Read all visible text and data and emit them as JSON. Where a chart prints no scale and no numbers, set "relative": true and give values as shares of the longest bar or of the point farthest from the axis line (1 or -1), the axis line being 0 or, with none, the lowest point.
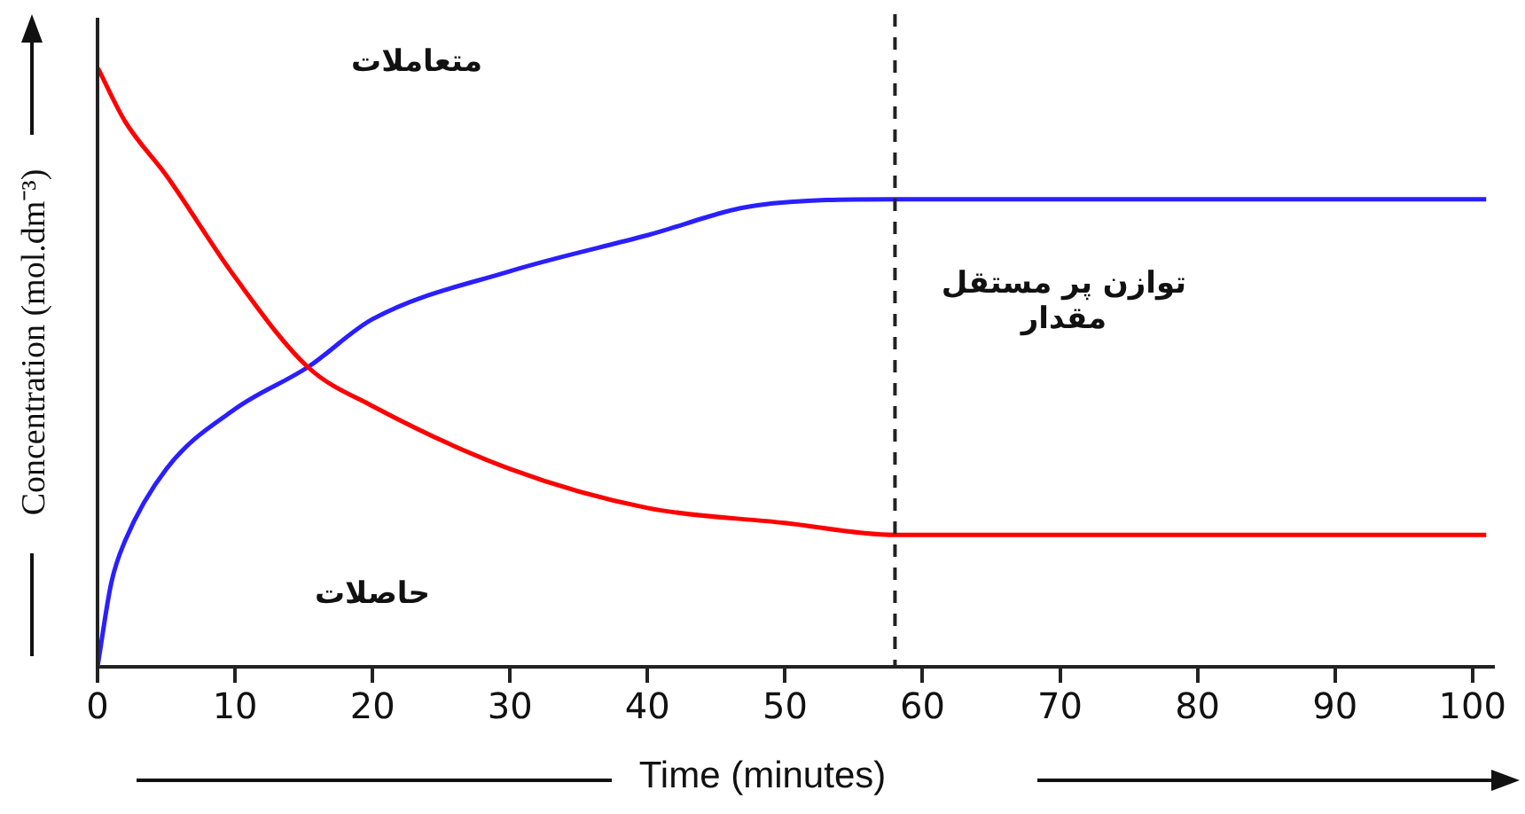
{
  "chart_data": {
    "type": "line",
    "relative": true,
    "xlabel": "Time (minutes)",
    "ylabel": "Concentration (mol.dm⁻³)",
    "xlim": [
      0,
      101.5
    ],
    "xticks": [
      0,
      10,
      20,
      30,
      40,
      50,
      60,
      70,
      80,
      90,
      100
    ],
    "marker": "none",
    "line_style": "solid",
    "legend": false,
    "series": [
      {
        "color": "#ff0000",
        "x": [
          0,
          2,
          5,
          10,
          15.3,
          20,
          30,
          40,
          50,
          58,
          101
        ],
        "values": [
          1,
          0.91,
          0.82,
          0.65,
          0.5,
          0.435,
          0.33,
          0.265,
          0.24,
          0.22,
          0.22
        ]
      },
      {
        "color": "#2a1fff",
        "x": [
          0,
          1,
          2,
          5,
          10,
          15.3,
          20,
          30,
          40,
          48,
          58,
          101
        ],
        "values": [
          0,
          0.14,
          0.21,
          0.33,
          0.43,
          0.5,
          0.58,
          0.66,
          0.72,
          0.77,
          0.78,
          0.78
        ]
      }
    ],
    "ref_lines": [
      {
        "axis": "x",
        "value": 58,
        "color": "#222222",
        "line_style": "dashed"
      }
    ],
    "annotations": [
      "متعاملات",
      "حاصلات",
      "توازن پر مستقل مقدار"
    ]
  }
}
